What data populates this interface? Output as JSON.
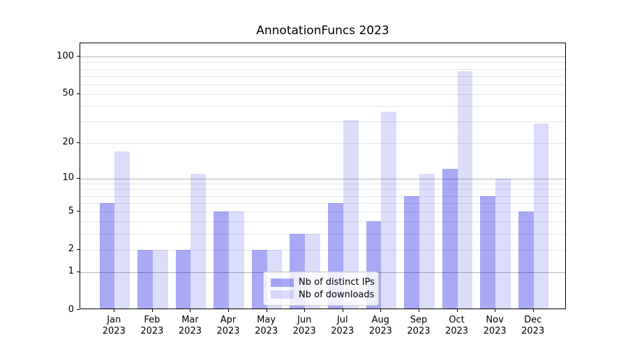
{
  "title": "AnnotationFuncs 2023",
  "colors": {
    "bar_ips": "rgba(10, 10, 230, 0.35)",
    "bar_downloads": "rgba(10, 10, 230, 0.14)",
    "bar_ips_flat": "#a7a7f4",
    "bar_downloads_flat": "#dcdcfa",
    "grid_major": "#b3b3b3",
    "grid_minor": "#e7e7e7",
    "spine": "#000000",
    "background": "#ffffff"
  },
  "chart_data": {
    "type": "bar",
    "title": "AnnotationFuncs 2023",
    "categories": [
      "Jan 2023",
      "Feb 2023",
      "Mar 2023",
      "Apr 2023",
      "May 2023",
      "Jun 2023",
      "Jul 2023",
      "Aug 2023",
      "Sep 2023",
      "Oct 2023",
      "Nov 2023",
      "Dec 2023"
    ],
    "series": [
      {
        "name": "Nb of distinct IPs",
        "values": [
          6,
          2,
          2,
          5,
          2,
          3,
          6,
          4,
          7,
          12,
          7,
          5
        ]
      },
      {
        "name": "Nb of downloads",
        "values": [
          17,
          2,
          11,
          5,
          2,
          3,
          31,
          36,
          11,
          77,
          10,
          29
        ]
      }
    ],
    "xlabel": "",
    "ylabel": "",
    "yscale": "log10(1+y)",
    "yticks": [
      0,
      1,
      2,
      5,
      10,
      20,
      50,
      100
    ],
    "ylim": [
      0,
      128
    ],
    "grid": true,
    "legend_position": "lower center"
  }
}
